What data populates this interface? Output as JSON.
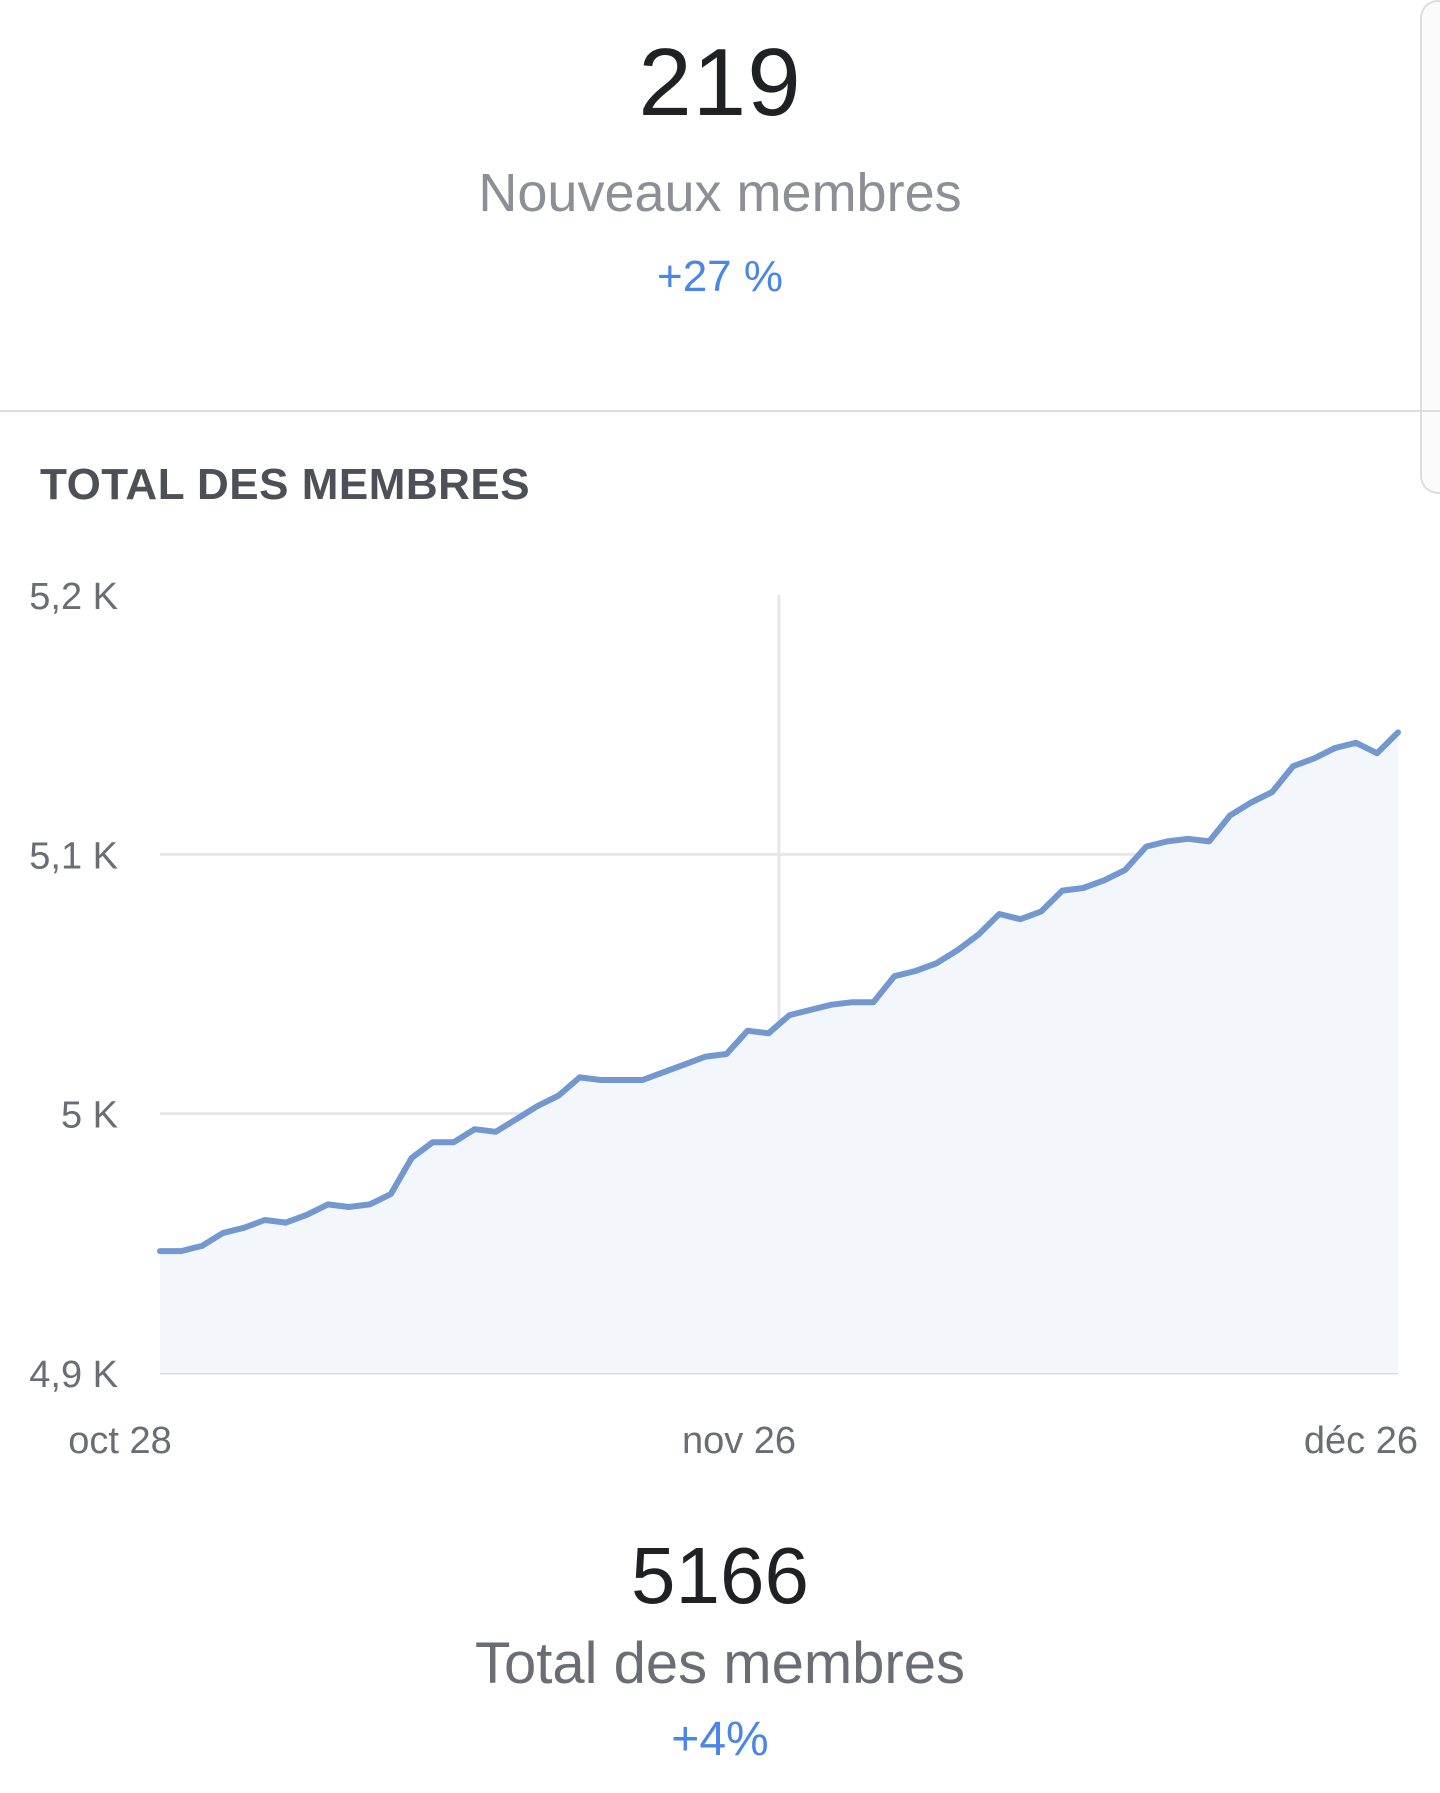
{
  "new_members": {
    "value": "219",
    "label": "Nouveaux membres",
    "change": "+27 %"
  },
  "section": {
    "title": "TOTAL DES MEMBRES"
  },
  "chart_data": {
    "type": "area",
    "title": "TOTAL DES MEMBRES",
    "xlabel": "",
    "ylabel": "",
    "y_ticks": [
      "5,2 K",
      "5,1 K",
      "5 K",
      "4,9 K"
    ],
    "y_tick_values": [
      5200,
      5100,
      5000,
      4900
    ],
    "ylim": [
      4900,
      5200
    ],
    "x_ticks": [
      "oct 28",
      "nov 26",
      "déc 26"
    ],
    "grid": true,
    "series": [
      {
        "values": [
          4947,
          4947,
          4949,
          4954,
          4956,
          4959,
          4958,
          4961,
          4965,
          4964,
          4965,
          4969,
          4983,
          4989,
          4989,
          4994,
          4993,
          4998,
          5003,
          5007,
          5014,
          5013,
          5013,
          5013,
          5016,
          5019,
          5022,
          5023,
          5032,
          5031,
          5038,
          5040,
          5042,
          5043,
          5043,
          5053,
          5055,
          5058,
          5063,
          5069,
          5077,
          5075,
          5078,
          5086,
          5087,
          5090,
          5094,
          5103,
          5105,
          5106,
          5105,
          5115,
          5120,
          5124,
          5134,
          5137,
          5141,
          5143,
          5139,
          5147
        ],
        "color": "#7397cf"
      }
    ]
  },
  "total_members": {
    "value": "5166",
    "label": "Total des membres",
    "change": "+4%"
  }
}
